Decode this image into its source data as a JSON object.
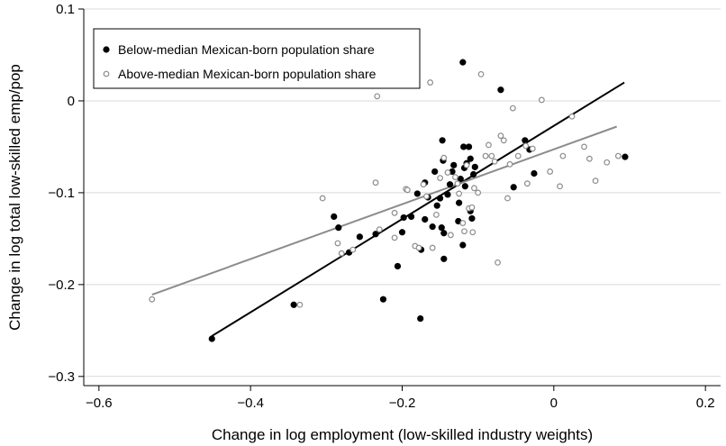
{
  "chart_data": {
    "type": "scatter",
    "title": "",
    "xlabel": "Change in log employment (low-skilled industry weights)",
    "ylabel": "Change in log total low-skilled emp/pop",
    "xlim": [
      -0.62,
      0.22
    ],
    "ylim": [
      -0.31,
      0.1
    ],
    "xticks": [
      -0.6,
      -0.4,
      -0.2,
      0,
      0.2
    ],
    "xtick_labels": [
      "−0.6",
      "−0.4",
      "−0.2",
      "0",
      "0.2"
    ],
    "yticks": [
      -0.3,
      -0.2,
      -0.1,
      0,
      0.1
    ],
    "ytick_labels": [
      "−0.3",
      "−0.2",
      "−0.1",
      "0",
      "0.1"
    ],
    "grid": true,
    "legend_position": "top-left",
    "series": [
      {
        "name": "Below-median Mexican-born population share",
        "color": "#000000",
        "marker": "filled-circle",
        "points": [
          [
            -0.451,
            -0.259
          ],
          [
            -0.343,
            -0.222
          ],
          [
            -0.29,
            -0.126
          ],
          [
            -0.284,
            -0.138
          ],
          [
            -0.27,
            -0.165
          ],
          [
            -0.256,
            -0.148
          ],
          [
            -0.235,
            -0.145
          ],
          [
            -0.225,
            -0.216
          ],
          [
            -0.206,
            -0.18
          ],
          [
            -0.2,
            -0.143
          ],
          [
            -0.198,
            -0.127
          ],
          [
            -0.188,
            -0.126
          ],
          [
            -0.18,
            -0.101
          ],
          [
            -0.176,
            -0.237
          ],
          [
            -0.175,
            -0.162
          ],
          [
            -0.17,
            -0.129
          ],
          [
            -0.17,
            -0.089
          ],
          [
            -0.166,
            -0.105
          ],
          [
            -0.16,
            -0.137
          ],
          [
            -0.157,
            -0.077
          ],
          [
            -0.154,
            -0.114
          ],
          [
            -0.15,
            -0.106
          ],
          [
            -0.148,
            -0.138
          ],
          [
            -0.147,
            -0.043
          ],
          [
            -0.146,
            -0.065
          ],
          [
            -0.145,
            -0.172
          ],
          [
            -0.145,
            -0.144
          ],
          [
            -0.14,
            -0.102
          ],
          [
            -0.137,
            -0.091
          ],
          [
            -0.134,
            -0.077
          ],
          [
            -0.132,
            -0.07
          ],
          [
            -0.126,
            -0.131
          ],
          [
            -0.125,
            -0.111
          ],
          [
            -0.123,
            -0.085
          ],
          [
            -0.12,
            0.042
          ],
          [
            -0.12,
            -0.157
          ],
          [
            -0.119,
            -0.05
          ],
          [
            -0.118,
            -0.073
          ],
          [
            -0.117,
            -0.093
          ],
          [
            -0.115,
            -0.068
          ],
          [
            -0.112,
            -0.05
          ],
          [
            -0.11,
            -0.063
          ],
          [
            -0.11,
            -0.12
          ],
          [
            -0.108,
            -0.128
          ],
          [
            -0.106,
            -0.08
          ],
          [
            -0.104,
            -0.072
          ],
          [
            -0.07,
            0.012
          ],
          [
            -0.053,
            -0.094
          ],
          [
            -0.038,
            -0.043
          ],
          [
            -0.032,
            -0.053
          ],
          [
            -0.026,
            -0.079
          ],
          [
            0.094,
            -0.061
          ]
        ],
        "fit_line": [
          [
            -0.451,
            -0.256
          ],
          [
            0.093,
            0.02
          ]
        ]
      },
      {
        "name": "Above-median Mexican-born population share",
        "color": "#8c8c8c",
        "marker": "hollow-circle",
        "points": [
          [
            -0.53,
            -0.216
          ],
          [
            -0.335,
            -0.222
          ],
          [
            -0.305,
            -0.106
          ],
          [
            -0.285,
            -0.155
          ],
          [
            -0.28,
            -0.166
          ],
          [
            -0.265,
            -0.162
          ],
          [
            -0.235,
            -0.089
          ],
          [
            -0.233,
            0.005
          ],
          [
            -0.23,
            -0.14
          ],
          [
            -0.21,
            -0.149
          ],
          [
            -0.21,
            -0.122
          ],
          [
            -0.195,
            -0.096
          ],
          [
            -0.193,
            -0.097
          ],
          [
            -0.183,
            -0.158
          ],
          [
            -0.178,
            -0.16
          ],
          [
            -0.172,
            -0.091
          ],
          [
            -0.168,
            -0.104
          ],
          [
            -0.163,
            0.02
          ],
          [
            -0.16,
            -0.16
          ],
          [
            -0.155,
            -0.124
          ],
          [
            -0.15,
            -0.084
          ],
          [
            -0.145,
            -0.062
          ],
          [
            -0.14,
            -0.078
          ],
          [
            -0.136,
            -0.146
          ],
          [
            -0.13,
            -0.083
          ],
          [
            -0.127,
            -0.09
          ],
          [
            -0.125,
            -0.101
          ],
          [
            -0.12,
            -0.133
          ],
          [
            -0.118,
            -0.142
          ],
          [
            -0.115,
            -0.07
          ],
          [
            -0.112,
            -0.117
          ],
          [
            -0.108,
            -0.116
          ],
          [
            -0.107,
            -0.143
          ],
          [
            -0.105,
            -0.095
          ],
          [
            -0.1,
            -0.1
          ],
          [
            -0.096,
            0.029
          ],
          [
            -0.09,
            -0.06
          ],
          [
            -0.086,
            -0.048
          ],
          [
            -0.082,
            -0.06
          ],
          [
            -0.078,
            -0.066
          ],
          [
            -0.074,
            -0.176
          ],
          [
            -0.07,
            -0.038
          ],
          [
            -0.066,
            -0.043
          ],
          [
            -0.061,
            -0.106
          ],
          [
            -0.058,
            -0.069
          ],
          [
            -0.054,
            -0.008
          ],
          [
            -0.047,
            -0.06
          ],
          [
            -0.037,
            -0.049
          ],
          [
            -0.035,
            -0.09
          ],
          [
            -0.028,
            -0.052
          ],
          [
            -0.016,
            0.001
          ],
          [
            -0.005,
            -0.077
          ],
          [
            0.008,
            -0.093
          ],
          [
            0.012,
            -0.06
          ],
          [
            0.024,
            -0.017
          ],
          [
            0.04,
            -0.05
          ],
          [
            0.047,
            -0.063
          ],
          [
            0.055,
            -0.087
          ],
          [
            0.07,
            -0.067
          ],
          [
            0.085,
            -0.06
          ]
        ],
        "fit_line": [
          [
            -0.53,
            -0.211
          ],
          [
            0.083,
            -0.028
          ]
        ]
      }
    ]
  }
}
